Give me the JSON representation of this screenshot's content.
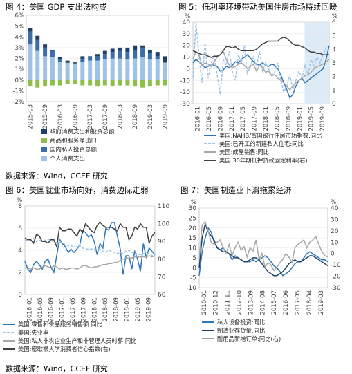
{
  "source_top": "数据来源：Wind，CCEF 研究",
  "source_bottom": "数据来源：Wind，CCEF 研究",
  "chart_data": [
    {
      "id": "fig4",
      "type": "bar",
      "title": "图 4：美国 GDP 支出法构成",
      "x_ticks": [
        "2015-03",
        "2015-09",
        "2016-03",
        "2016-09",
        "2017-03",
        "2017-09",
        "2018-03",
        "2018-09",
        "2019-03",
        "2019-09"
      ],
      "y_ticks": [
        "6%",
        "5%",
        "4%",
        "3%",
        "2%",
        "1%",
        "0%",
        "-1%",
        "-2%"
      ],
      "ylim": [
        -2,
        6
      ],
      "grid": true,
      "legend": "bottom",
      "colors": {
        "gov": "#1f3f66",
        "net_exports": "#8dbf4a",
        "private_inv": "#3b6ea8",
        "consumption": "#9ec3e6"
      },
      "quarters": 19,
      "series": [
        {
          "name": "政府消费支出和投资总额",
          "key": "gov",
          "values": [
            0.3,
            0.4,
            0.3,
            0.1,
            0.2,
            0.2,
            0.1,
            0.2,
            0.1,
            0.2,
            0.3,
            0.3,
            0.3,
            0.4,
            0.4,
            0.2,
            0.3,
            0.4,
            0.5
          ]
        },
        {
          "name": "商品和服务净出口",
          "key": "net_exports",
          "values": [
            -0.6,
            -0.7,
            -0.6,
            -0.5,
            -0.5,
            -0.4,
            -0.4,
            -0.5,
            -0.5,
            -0.6,
            -0.5,
            -0.6,
            -0.5,
            -0.5,
            -0.6,
            -0.7,
            -0.6,
            -0.5,
            -0.5
          ]
        },
        {
          "name": "国内私人投资总额",
          "key": "private_inv",
          "values": [
            1.2,
            1.0,
            0.8,
            0.6,
            0.2,
            0.0,
            0.1,
            0.3,
            0.3,
            0.4,
            0.5,
            0.6,
            0.7,
            0.7,
            0.8,
            0.9,
            0.6,
            0.3,
            0.1
          ]
        },
        {
          "name": "个人消费支出",
          "key": "consumption",
          "values": [
            3.3,
            2.7,
            2.2,
            2.1,
            1.7,
            1.6,
            1.5,
            1.7,
            1.8,
            1.8,
            1.9,
            2.0,
            2.0,
            1.9,
            2.0,
            2.1,
            1.9,
            1.9,
            1.6
          ]
        }
      ]
    },
    {
      "id": "fig5",
      "type": "line",
      "title": "图 5：低利率环境带动美国住房市场持续回暖",
      "x_ticks": [
        "2016-01",
        "2016-05",
        "2016-09",
        "2017-01",
        "2017-05",
        "2017-09",
        "2018-01",
        "2018-05",
        "2018-09",
        "2019-01",
        "2019-05",
        "2019-09"
      ],
      "y_left_ticks": [
        "40",
        "30",
        "20",
        "10",
        "0",
        "-10",
        "-20",
        "-30"
      ],
      "y_right_ticks": [
        "6",
        "5",
        "4",
        "3",
        "2",
        "1",
        "0"
      ],
      "y_left_unit": "%",
      "y_right_unit": "%",
      "ylim_left": [
        -30,
        40
      ],
      "ylim_right": [
        0,
        6
      ],
      "shaded_period": [
        "2019-01",
        "2019-09"
      ],
      "legend": "bottom",
      "series": [
        {
          "name": "美国:NAHB/富国银行住房市场指数:同比",
          "axis": "left",
          "color": "#2e75b6",
          "style": "solid",
          "values": [
            5,
            8,
            6,
            3,
            1,
            2,
            4,
            3,
            2,
            -2,
            -1,
            2,
            1,
            3,
            6,
            5,
            8,
            10,
            12,
            9,
            6,
            4,
            3,
            5,
            3,
            2,
            4,
            3,
            0,
            -5,
            -12,
            -18,
            -25,
            -22,
            -15,
            -10,
            -8,
            -12,
            -10,
            -8,
            -6,
            -4,
            -2,
            0,
            8,
            20
          ]
        },
        {
          "name": "美国:已开工的新建私人住宅:同比",
          "axis": "left",
          "color": "#9dc3e6",
          "style": "dashed",
          "values": [
            -8,
            40,
            10,
            -12,
            22,
            -8,
            5,
            12,
            -5,
            -22,
            8,
            3,
            15,
            -2,
            -10,
            12,
            5,
            20,
            -5,
            3,
            10,
            2,
            15,
            -2,
            5,
            0,
            -6,
            -3,
            5,
            -10,
            -20,
            -15,
            -5,
            -18,
            -10,
            -2,
            -8,
            3,
            -5,
            8,
            2,
            10,
            5,
            12,
            18,
            20
          ]
        },
        {
          "name": "美国:成屋销售:同比",
          "axis": "left",
          "color": "#a6a6a6",
          "style": "solid",
          "values": [
            8,
            15,
            12,
            3,
            5,
            4,
            2,
            6,
            10,
            12,
            15,
            8,
            3,
            1,
            2,
            4,
            5,
            3,
            0,
            2,
            4,
            -2,
            3,
            1,
            -3,
            -2,
            -6,
            -5,
            -8,
            -10,
            -12,
            -15,
            -18,
            -15,
            -12,
            -10,
            -8,
            -6,
            -5,
            -3,
            0,
            2,
            3,
            4,
            6,
            8
          ]
        },
        {
          "name": "美国:30年期抵押贷款固定利率(右)",
          "axis": "right",
          "color": "#404040",
          "style": "solid",
          "values": [
            3.9,
            3.8,
            3.7,
            3.6,
            3.6,
            3.5,
            3.4,
            3.5,
            3.5,
            3.6,
            3.9,
            4.2,
            4.2,
            4.1,
            4.2,
            4.0,
            3.9,
            3.9,
            3.9,
            3.9,
            3.9,
            4.0,
            4.2,
            4.4,
            4.5,
            4.6,
            4.6,
            4.6,
            4.6,
            4.8,
            4.9,
            4.8,
            4.6,
            4.4,
            4.3,
            4.3,
            4.2,
            4.1,
            3.9,
            3.8,
            3.8,
            3.7,
            3.7,
            3.6,
            3.6,
            3.6
          ]
        }
      ]
    },
    {
      "id": "fig6",
      "type": "line",
      "title": "图 6：美国就业市场向好，消费边际走弱",
      "x_ticks": [
        "2016-01",
        "2016-05",
        "2016-09",
        "2017-01",
        "2017-05",
        "2017-09",
        "2018-01",
        "2018-05",
        "2018-09",
        "2019-01",
        "2019-05",
        "2019-09"
      ],
      "y_left_ticks": [
        "8",
        "6",
        "4",
        "2",
        "0"
      ],
      "y_right_ticks": [
        "110",
        "100",
        "90",
        "80",
        "70",
        "60"
      ],
      "y_left_unit": "%",
      "ylim_left": [
        0,
        8
      ],
      "ylim_right": [
        60,
        110
      ],
      "legend": "bottom",
      "series": [
        {
          "name": "美国:零售和食品服务销售额:同比",
          "axis": "left",
          "color": "#2e75b6",
          "style": "solid",
          "values": [
            3.0,
            2.3,
            2.0,
            2.7,
            3.0,
            2.7,
            2.3,
            3.0,
            3.2,
            2.5,
            2.0,
            3.5,
            5.0,
            4.6,
            4.3,
            3.8,
            4.1,
            3.8,
            4.1,
            4.5,
            5.8,
            5.6,
            5.2,
            5.4,
            4.8,
            3.6,
            4.6,
            4.2,
            6.0,
            5.8,
            6.5,
            6.5,
            5.3,
            4.1,
            1.8,
            3.5,
            3.5,
            2.3,
            3.9,
            3.2,
            2.1,
            4.6,
            3.3,
            4.2,
            3.9,
            3.6
          ]
        },
        {
          "name": "美国:失业率",
          "axis": "left",
          "color": "#9dc3e6",
          "style": "dashed",
          "values": [
            4.9,
            4.9,
            5.0,
            5.1,
            4.8,
            4.9,
            4.9,
            4.9,
            5.0,
            4.9,
            4.7,
            4.7,
            4.7,
            4.7,
            4.5,
            4.4,
            4.4,
            4.3,
            4.3,
            4.4,
            4.2,
            4.1,
            4.1,
            4.1,
            4.1,
            4.1,
            4.1,
            3.9,
            3.8,
            4.0,
            3.9,
            3.8,
            3.7,
            3.8,
            3.7,
            3.9,
            4.0,
            3.8,
            3.8,
            3.6,
            3.6,
            3.7,
            3.7,
            3.7,
            3.5,
            3.6
          ]
        },
        {
          "name": "美国:私人非农企业生产和非管理人员时薪:同比",
          "axis": "left",
          "color": "#a6a6a6",
          "style": "solid",
          "values": [
            2.4,
            2.4,
            2.3,
            2.4,
            2.3,
            2.3,
            2.5,
            2.6,
            2.5,
            2.4,
            2.6,
            2.5,
            2.3,
            2.4,
            2.3,
            2.3,
            2.4,
            2.4,
            2.3,
            2.4,
            2.6,
            2.6,
            2.5,
            2.4,
            2.5,
            2.5,
            2.6,
            2.7,
            2.7,
            2.8,
            2.8,
            2.9,
            2.9,
            3.1,
            3.2,
            3.3,
            3.3,
            3.3,
            3.4,
            3.4,
            3.4,
            3.4,
            3.4,
            3.5,
            3.4,
            3.5
          ]
        },
        {
          "name": "美国:密歇根大学消费者信心指数(右)",
          "axis": "right",
          "color": "#404040",
          "style": "solid",
          "values": [
            92,
            91,
            91,
            89,
            94,
            93,
            90,
            90,
            89,
            91,
            91,
            87,
            98,
            96,
            96,
            97,
            97,
            95,
            93,
            97,
            95,
            100,
            98,
            96,
            95,
            99,
            101,
            99,
            98,
            98,
            98,
            97,
            96,
            100,
            98,
            98,
            91,
            93,
            98,
            97,
            100,
            98,
            98,
            89,
            93,
            95
          ]
        }
      ]
    },
    {
      "id": "fig7",
      "type": "line",
      "title": "图 7：美国制造业下滑拖累经济",
      "x_ticks": [
        "2010-01",
        "2010-12",
        "2011-11",
        "2012-10",
        "2013-09",
        "2014-08",
        "2015-07",
        "2016-06",
        "2017-05",
        "2018-04",
        "2019-03"
      ],
      "y_left_ticks": [
        "30",
        "25",
        "20",
        "15",
        "10",
        "5",
        "0",
        "-5",
        "-10"
      ],
      "y_right_ticks": [
        "40",
        "30",
        "20",
        "10",
        "0",
        "-10",
        "-20",
        "-30"
      ],
      "y_left_unit": "%",
      "y_right_unit": "%",
      "ylim_left": [
        -10,
        30
      ],
      "ylim_right": [
        -30,
        40
      ],
      "legend": "bottom",
      "series": [
        {
          "name": "私人设备投资:同比",
          "axis": "left",
          "color": "#2e75b6",
          "style": "solid",
          "values": [
            -4,
            8,
            15,
            20,
            18,
            13,
            10,
            9,
            10,
            8,
            7,
            4,
            6,
            5,
            4,
            3,
            3,
            3,
            4,
            3,
            4,
            5,
            6,
            5,
            3,
            1,
            0,
            -2,
            -4,
            -3,
            -2,
            0,
            2,
            3,
            3,
            5,
            7,
            8,
            7,
            6,
            5,
            4,
            4,
            3
          ]
        },
        {
          "name": "制造业存货量:同比",
          "axis": "left",
          "color": "#1f3f66",
          "style": "solid",
          "values": [
            0,
            15,
            22,
            18,
            16,
            14,
            10,
            9,
            8,
            8,
            7,
            6,
            5,
            5,
            4,
            3,
            3,
            4,
            5,
            5,
            4,
            2,
            0,
            -2,
            -3,
            -4,
            -4,
            -3,
            -2,
            0,
            2,
            3,
            4,
            3,
            3,
            4,
            5,
            6,
            6,
            5,
            4,
            3,
            2,
            1
          ]
        },
        {
          "name": "耐用品新增订单:同比(右)",
          "axis": "right",
          "color": "#a6a6a6",
          "style": "solid",
          "values": [
            -5,
            25,
            28,
            20,
            10,
            8,
            10,
            12,
            5,
            0,
            8,
            -2,
            5,
            10,
            3,
            6,
            -3,
            5,
            2,
            12,
            -5,
            0,
            -12,
            -8,
            -10,
            -15,
            -12,
            -8,
            -5,
            0,
            -3,
            -8,
            5,
            8,
            10,
            12,
            5,
            10,
            12,
            15,
            8,
            2,
            -2,
            -3
          ]
        }
      ]
    }
  ]
}
